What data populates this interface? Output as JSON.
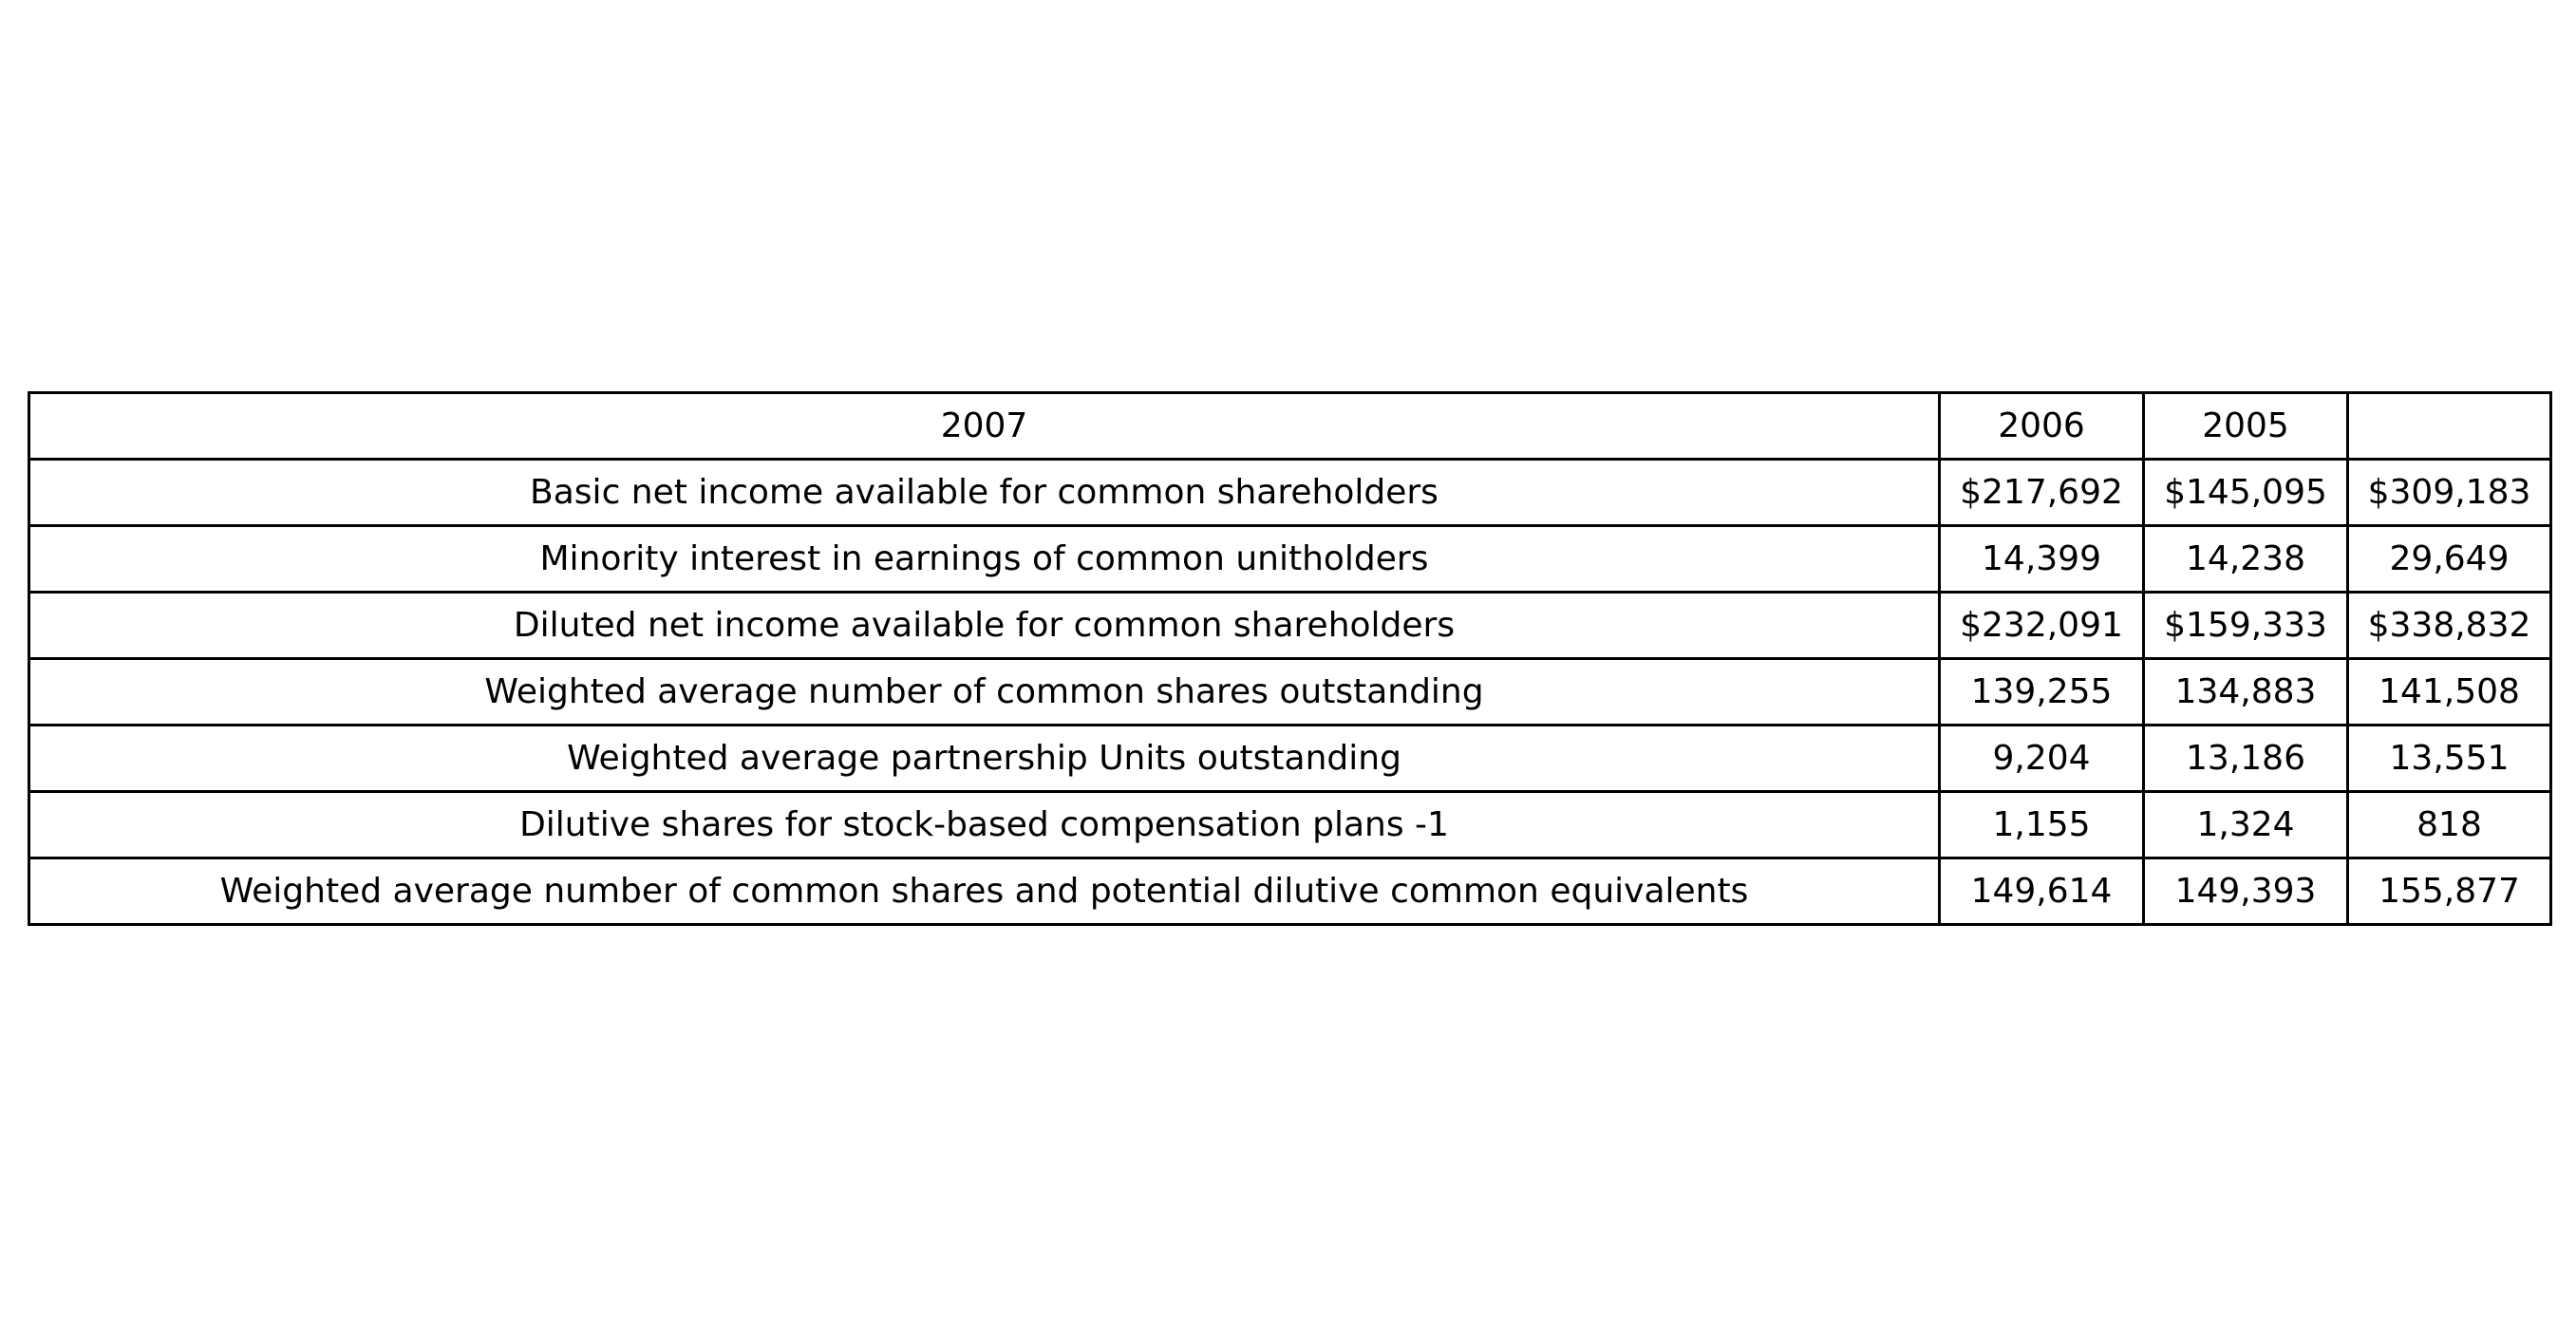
{
  "chart_data": {
    "type": "table",
    "header": [
      "2007",
      "2006",
      "2005",
      ""
    ],
    "rows": [
      [
        "Basic net income available for common shareholders",
        "$217,692",
        "$145,095",
        "$309,183"
      ],
      [
        "Minority interest in earnings of common unitholders",
        "14,399",
        "14,238",
        "29,649"
      ],
      [
        "Diluted net income available for common shareholders",
        "$232,091",
        "$159,333",
        "$338,832"
      ],
      [
        "Weighted average number of common shares outstanding",
        "139,255",
        "134,883",
        "141,508"
      ],
      [
        "Weighted average partnership Units outstanding",
        "9,204",
        "13,186",
        "13,551"
      ],
      [
        "Dilutive shares for stock-based compensation plans -1",
        "1,155",
        "1,324",
        "818"
      ],
      [
        "Weighted average number of common shares and potential dilutive common equivalents",
        "149,614",
        "149,393",
        "155,877"
      ]
    ]
  }
}
